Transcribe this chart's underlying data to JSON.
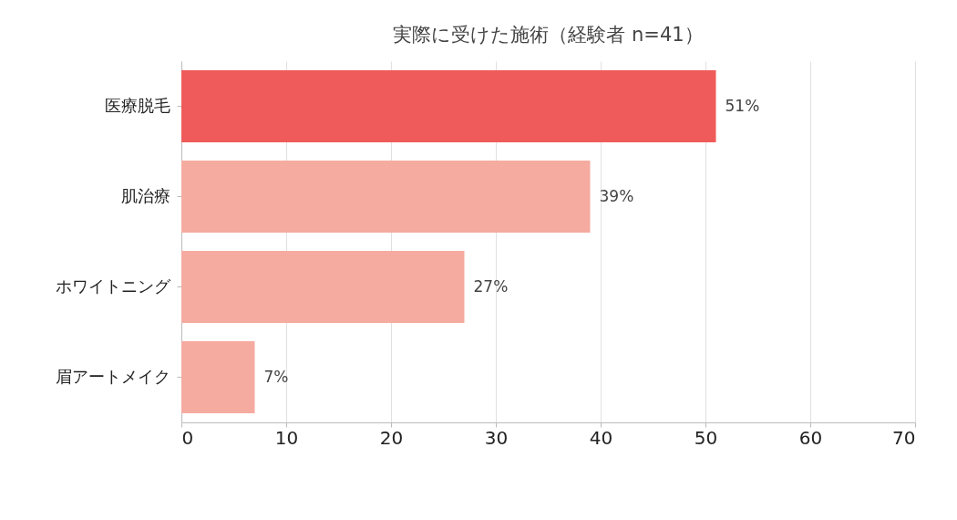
{
  "chart_data": {
    "type": "bar",
    "orientation": "horizontal",
    "title": "実際に受けた施術（経験者 n=41）",
    "categories": [
      "医療脱毛",
      "肌治療",
      "ホワイトニング",
      "眉アートメイク"
    ],
    "values": [
      51,
      39,
      27,
      7
    ],
    "colors": [
      "#ef5b5b",
      "#f5aba0",
      "#f5aba0",
      "#f5aba0"
    ],
    "value_labels": [
      "51%",
      "39%",
      "27%",
      "7%"
    ],
    "xlim": [
      0,
      70
    ],
    "xticks": [
      0,
      10,
      20,
      30,
      40,
      50,
      60,
      70
    ],
    "grid": "x"
  }
}
